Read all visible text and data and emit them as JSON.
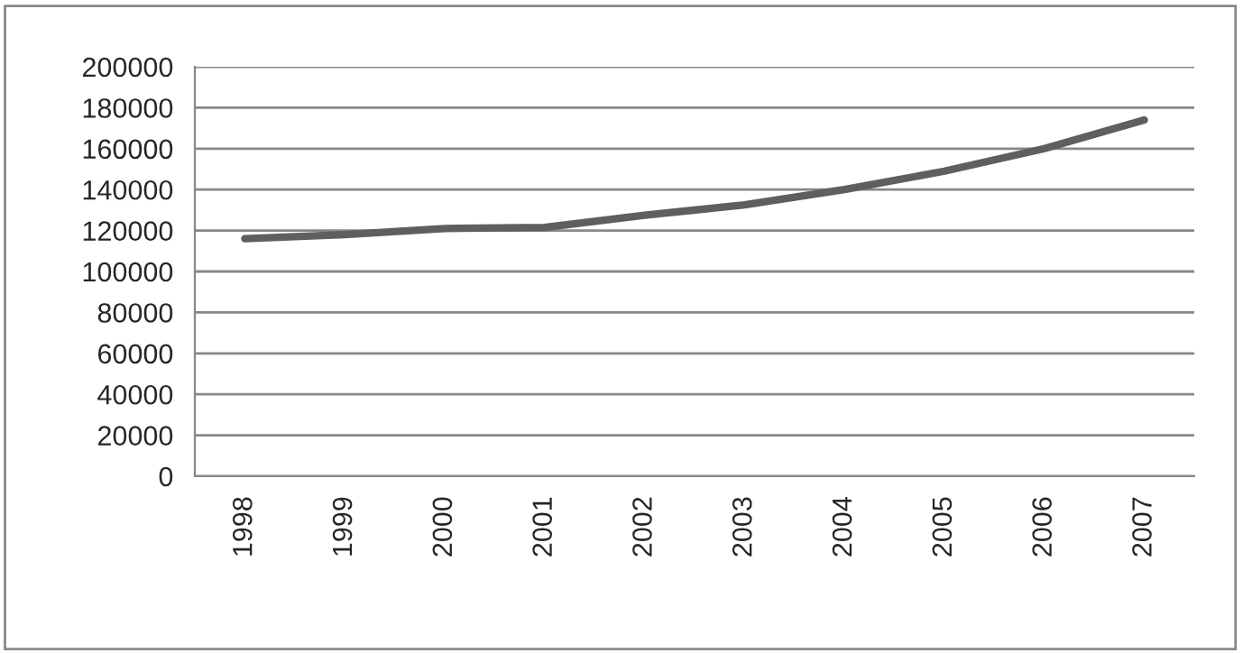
{
  "chart_data": {
    "type": "line",
    "categories": [
      "1998",
      "1999",
      "2000",
      "2001",
      "2002",
      "2003",
      "2004",
      "2005",
      "2006",
      "2007"
    ],
    "series": [
      {
        "color": "#5f5f5f",
        "values": [
          116000,
          118000,
          121000,
          121500,
          127500,
          132500,
          140000,
          149000,
          160000,
          174000
        ]
      }
    ],
    "ylim": [
      0,
      200000
    ],
    "yticks": [
      0,
      20000,
      40000,
      60000,
      80000,
      100000,
      120000,
      140000,
      160000,
      180000,
      200000
    ],
    "grid": "y",
    "legend": false,
    "marker": "none",
    "line_style": "solid"
  }
}
